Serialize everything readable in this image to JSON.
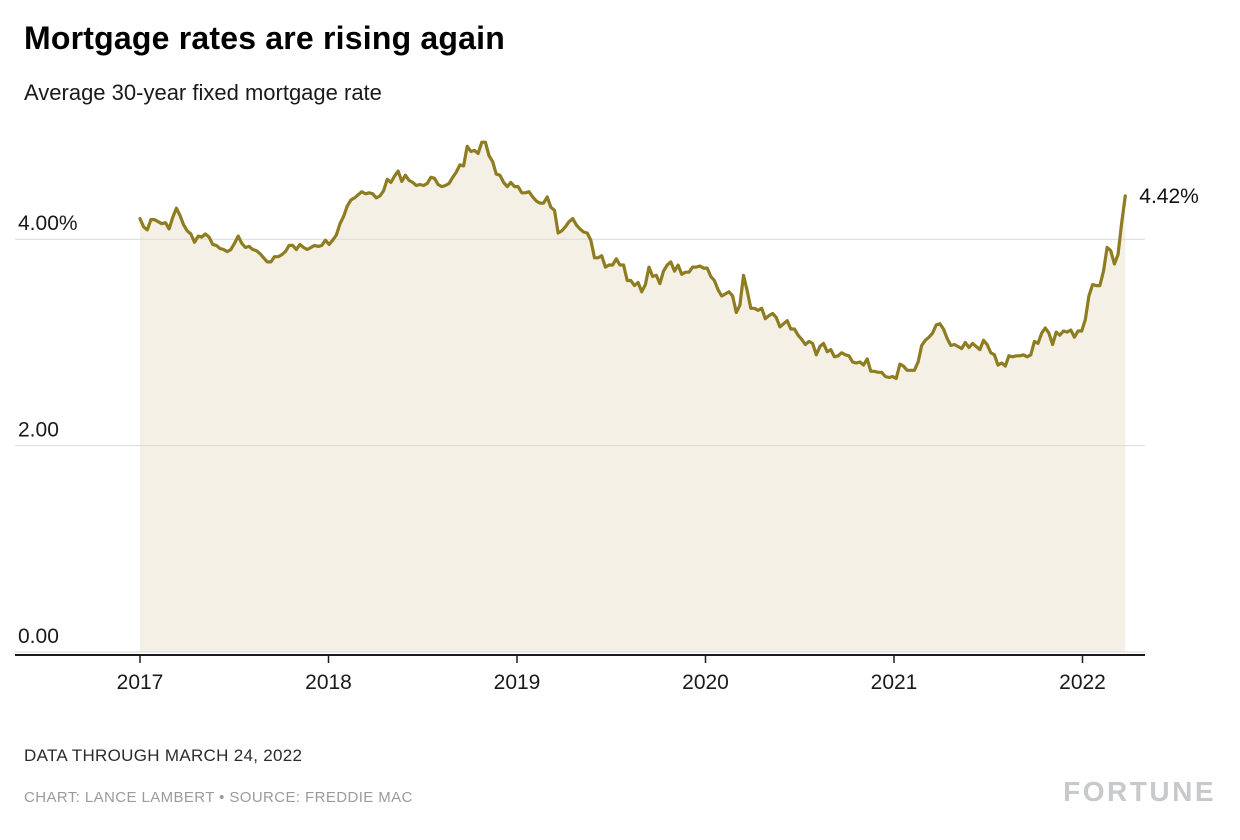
{
  "header": {
    "title": "Mortgage rates are rising again",
    "subtitle": "Average 30-year fixed mortgage rate"
  },
  "footer": {
    "note": "DATA THROUGH MARCH 24, 2022",
    "credit": "CHART: LANCE LAMBERT • SOURCE: FREDDIE MAC",
    "brand": "FORTUNE"
  },
  "chart_data": {
    "type": "area",
    "title": "Mortgage rates are rising again",
    "subtitle": "Average 30-year fixed mortgage rate",
    "unit": "%",
    "frequency": "weekly",
    "x_start_year": 2017,
    "x_end_year": 2022.227,
    "xlim": [
      2016.33,
      2022.35
    ],
    "ylim": [
      0,
      5.1
    ],
    "grid": "horizontal",
    "legend": "none",
    "line_color": "#8e7c20",
    "fill_color": "#f4f0e6",
    "grid_color": "#d9d9d9",
    "axis_color": "#1a1a1a",
    "x_ticks": [
      2017,
      2018,
      2019,
      2020,
      2021,
      2022
    ],
    "y_ticks": [
      {
        "value": 0,
        "label": "0.00"
      },
      {
        "value": 2,
        "label": "2.00"
      },
      {
        "value": 4,
        "label": "4.00%"
      }
    ],
    "annotation": {
      "label": "4.42%",
      "value": 4.42
    },
    "values": [
      4.2,
      4.12,
      4.09,
      4.19,
      4.19,
      4.17,
      4.15,
      4.16,
      4.1,
      4.21,
      4.3,
      4.23,
      4.14,
      4.08,
      4.05,
      3.97,
      4.03,
      4.02,
      4.05,
      4.02,
      3.95,
      3.94,
      3.91,
      3.9,
      3.88,
      3.9,
      3.96,
      4.03,
      3.96,
      3.92,
      3.93,
      3.9,
      3.89,
      3.86,
      3.82,
      3.78,
      3.78,
      3.83,
      3.83,
      3.85,
      3.88,
      3.94,
      3.94,
      3.9,
      3.95,
      3.92,
      3.9,
      3.92,
      3.94,
      3.93,
      3.94,
      3.99,
      3.95,
      3.99,
      4.04,
      4.15,
      4.22,
      4.32,
      4.38,
      4.4,
      4.43,
      4.46,
      4.44,
      4.45,
      4.44,
      4.4,
      4.42,
      4.47,
      4.58,
      4.55,
      4.61,
      4.66,
      4.56,
      4.62,
      4.57,
      4.55,
      4.52,
      4.53,
      4.52,
      4.54,
      4.6,
      4.59,
      4.53,
      4.51,
      4.52,
      4.54,
      4.6,
      4.65,
      4.72,
      4.71,
      4.9,
      4.85,
      4.86,
      4.83,
      4.94,
      4.94,
      4.81,
      4.75,
      4.63,
      4.62,
      4.55,
      4.51,
      4.55,
      4.51,
      4.51,
      4.45,
      4.45,
      4.46,
      4.41,
      4.37,
      4.35,
      4.35,
      4.41,
      4.31,
      4.28,
      4.06,
      4.08,
      4.12,
      4.17,
      4.2,
      4.14,
      4.1,
      4.07,
      4.06,
      3.99,
      3.82,
      3.82,
      3.84,
      3.73,
      3.75,
      3.75,
      3.81,
      3.75,
      3.75,
      3.6,
      3.6,
      3.55,
      3.58,
      3.49,
      3.56,
      3.73,
      3.64,
      3.65,
      3.57,
      3.69,
      3.75,
      3.78,
      3.69,
      3.75,
      3.66,
      3.68,
      3.68,
      3.73,
      3.73,
      3.74,
      3.72,
      3.72,
      3.64,
      3.6,
      3.51,
      3.45,
      3.47,
      3.49,
      3.45,
      3.29,
      3.36,
      3.65,
      3.5,
      3.33,
      3.33,
      3.31,
      3.33,
      3.23,
      3.26,
      3.28,
      3.24,
      3.15,
      3.18,
      3.21,
      3.13,
      3.13,
      3.07,
      3.03,
      2.98,
      3.01,
      2.99,
      2.88,
      2.96,
      2.99,
      2.91,
      2.93,
      2.86,
      2.87,
      2.9,
      2.88,
      2.87,
      2.81,
      2.8,
      2.81,
      2.78,
      2.84,
      2.72,
      2.72,
      2.71,
      2.71,
      2.67,
      2.66,
      2.67,
      2.65,
      2.79,
      2.77,
      2.73,
      2.73,
      2.73,
      2.81,
      2.97,
      3.02,
      3.05,
      3.09,
      3.17,
      3.18,
      3.13,
      3.04,
      2.97,
      2.98,
      2.96,
      2.94,
      3.0,
      2.95,
      2.99,
      2.96,
      2.93,
      3.02,
      2.98,
      2.9,
      2.88,
      2.78,
      2.8,
      2.77,
      2.87,
      2.86,
      2.87,
      2.87,
      2.88,
      2.86,
      2.88,
      3.01,
      2.99,
      3.09,
      3.14,
      3.09,
      2.98,
      3.1,
      3.07,
      3.11,
      3.1,
      3.12,
      3.05,
      3.11,
      3.11,
      3.22,
      3.45,
      3.56,
      3.55,
      3.55,
      3.69,
      3.92,
      3.89,
      3.76,
      3.85,
      4.16,
      4.42
    ]
  }
}
